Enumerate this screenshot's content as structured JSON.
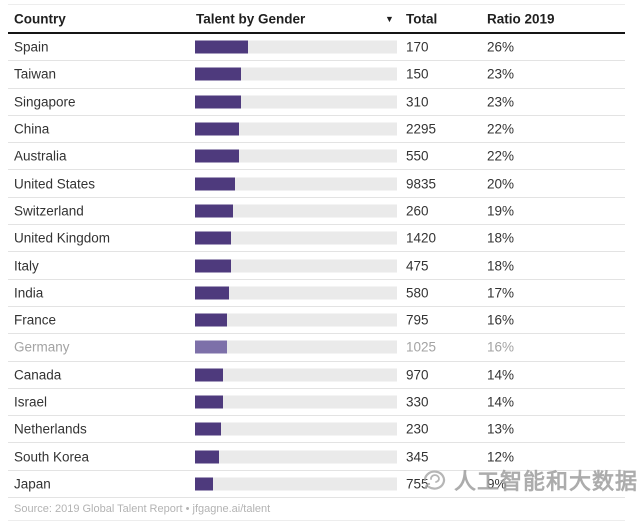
{
  "table": {
    "headers": {
      "country": "Country",
      "talent": "Talent by Gender",
      "total": "Total",
      "ratio": "Ratio 2019"
    },
    "sort_icon": "▼"
  },
  "chart_data": {
    "type": "table",
    "columns": [
      "Country",
      "Talent by Gender",
      "Total",
      "Ratio 2019"
    ],
    "bar_column": "Talent by Gender",
    "bar_meaning": "bar width equals Ratio 2019 percent of full track (track = 100%)",
    "bar_axis_max_pct": 100,
    "sort": "Talent by Gender descending",
    "rows": [
      {
        "country": "Spain",
        "total": "170",
        "ratio": "26%",
        "bar_pct": 26,
        "muted": false
      },
      {
        "country": "Taiwan",
        "total": "150",
        "ratio": "23%",
        "bar_pct": 23,
        "muted": false
      },
      {
        "country": "Singapore",
        "total": "310",
        "ratio": "23%",
        "bar_pct": 23,
        "muted": false
      },
      {
        "country": "China",
        "total": "2295",
        "ratio": "22%",
        "bar_pct": 22,
        "muted": false
      },
      {
        "country": "Australia",
        "total": "550",
        "ratio": "22%",
        "bar_pct": 22,
        "muted": false
      },
      {
        "country": "United States",
        "total": "9835",
        "ratio": "20%",
        "bar_pct": 20,
        "muted": false
      },
      {
        "country": "Switzerland",
        "total": "260",
        "ratio": "19%",
        "bar_pct": 19,
        "muted": false
      },
      {
        "country": "United Kingdom",
        "total": "1420",
        "ratio": "18%",
        "bar_pct": 18,
        "muted": false
      },
      {
        "country": "Italy",
        "total": "475",
        "ratio": "18%",
        "bar_pct": 18,
        "muted": false
      },
      {
        "country": "India",
        "total": "580",
        "ratio": "17%",
        "bar_pct": 17,
        "muted": false
      },
      {
        "country": "France",
        "total": "795",
        "ratio": "16%",
        "bar_pct": 16,
        "muted": false
      },
      {
        "country": "Germany",
        "total": "1025",
        "ratio": "16%",
        "bar_pct": 16,
        "muted": true
      },
      {
        "country": "Canada",
        "total": "970",
        "ratio": "14%",
        "bar_pct": 14,
        "muted": false
      },
      {
        "country": "Israel",
        "total": "330",
        "ratio": "14%",
        "bar_pct": 14,
        "muted": false
      },
      {
        "country": "Netherlands",
        "total": "230",
        "ratio": "13%",
        "bar_pct": 13,
        "muted": false
      },
      {
        "country": "South Korea",
        "total": "345",
        "ratio": "12%",
        "bar_pct": 12,
        "muted": false
      },
      {
        "country": "Japan",
        "total": "755",
        "ratio": "9%",
        "bar_pct": 9,
        "muted": false
      }
    ],
    "source": "Source: 2019 Global Talent Report • jfgagne.ai/talent"
  },
  "footer": {
    "source": "Source: 2019 Global Talent Report • jfgagne.ai/talent"
  },
  "watermark": {
    "text": "人工智能和大数据"
  },
  "colors": {
    "bar": "#4e3a7d",
    "bar_muted": "#7d70a9",
    "track": "#eaeaea",
    "header_rule": "#151515",
    "row_rule": "#e3e3e3",
    "text": "#333333",
    "text_muted": "#a3a3a3",
    "footer_text": "#b3b3b3",
    "watermark": "#9e9e9e"
  }
}
